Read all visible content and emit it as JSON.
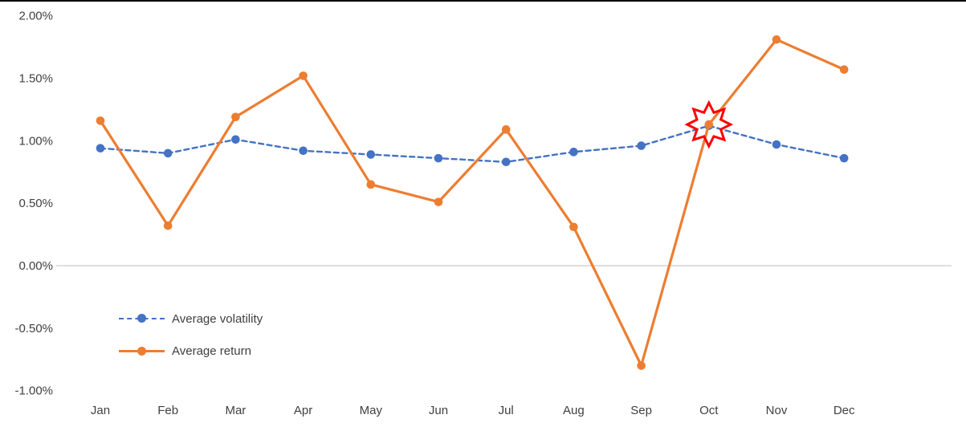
{
  "chart_data": {
    "type": "line",
    "title": "",
    "categories": [
      "Jan",
      "Feb",
      "Mar",
      "Apr",
      "May",
      "Jun",
      "Jul",
      "Aug",
      "Sep",
      "Oct",
      "Nov",
      "Dec"
    ],
    "series": [
      {
        "name": "Average volatility",
        "color": "#4472C4",
        "marker": "circle",
        "line_style": "dashed",
        "dash": "6 4.5",
        "values": [
          0.94,
          0.9,
          1.01,
          0.92,
          0.89,
          0.86,
          0.83,
          0.91,
          0.96,
          1.12,
          0.97,
          0.86
        ]
      },
      {
        "name": "Average return",
        "color": "#ED7D31",
        "marker": "circle",
        "line_style": "solid",
        "dash": "",
        "values": [
          1.16,
          0.32,
          1.19,
          1.52,
          0.65,
          0.51,
          1.09,
          0.31,
          -0.8,
          1.13,
          1.81,
          1.57
        ]
      }
    ],
    "y_ticks": [
      2.0,
      1.5,
      1.0,
      0.5,
      0.0,
      -0.5,
      -1.0
    ],
    "ylim": [
      -1.0,
      2.0
    ],
    "y_format": "percent_2dp",
    "grid": "zero-line-only",
    "zero_line_color": "#BFBFBF",
    "axis_text_color": "#404040",
    "legend_position": "inside-left-middle",
    "annotation": {
      "shape": "star-burst",
      "month": "Oct",
      "value": 1.13,
      "series": "Average return",
      "color": "#FF0000"
    }
  }
}
